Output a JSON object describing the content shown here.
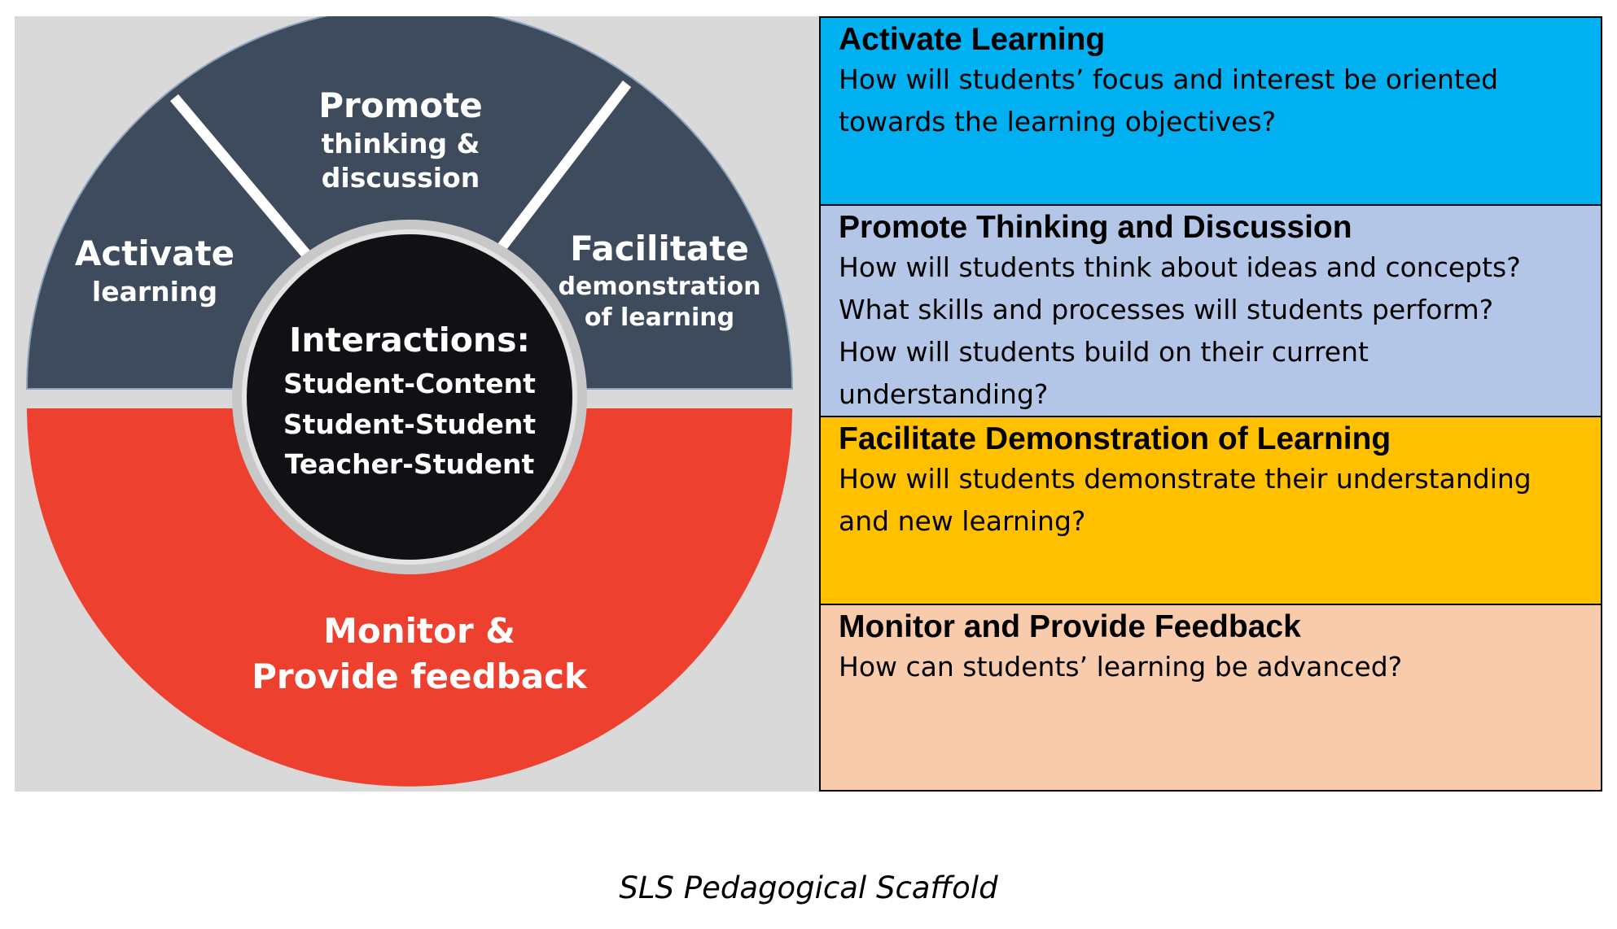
{
  "colors": {
    "panel_bg": "#d9d9d9",
    "wheel_dark": "#3d4b5c",
    "wheel_red": "#ee402f",
    "center_black": "#111115",
    "activate_row": "#00b0f0",
    "promote_row": "#b4c6e7",
    "facilitate_row": "#ffc000",
    "monitor_row": "#f8cbad"
  },
  "wheel": {
    "activate": {
      "title": "Activate",
      "sub": [
        "learning"
      ]
    },
    "promote": {
      "title": "Promote",
      "sub": [
        "thinking &",
        "discussion"
      ]
    },
    "facilitate": {
      "title": "Facilitate",
      "sub": [
        "demonstration",
        "of learning"
      ]
    },
    "monitor": {
      "lines": [
        "Monitor &",
        "Provide feedback"
      ]
    },
    "center": {
      "title": "Interactions:",
      "lines": [
        "Student-Content",
        "Student-Student",
        "Teacher-Student"
      ]
    }
  },
  "table": [
    {
      "title": "Activate Learning",
      "lines": [
        "How will students’ focus and interest be oriented",
        "towards the learning objectives?"
      ]
    },
    {
      "title": "Promote Thinking and Discussion",
      "lines": [
        "How will students think about ideas and concepts?",
        "What skills and processes will students perform?",
        "How will students build on their current",
        "understanding?"
      ]
    },
    {
      "title": "Facilitate Demonstration of Learning",
      "lines": [
        "How will students demonstrate their understanding",
        "and new learning?"
      ]
    },
    {
      "title": "Monitor and Provide Feedback",
      "lines": [
        "How can students’ learning be advanced?"
      ]
    }
  ],
  "caption": "SLS Pedagogical Scaffold"
}
